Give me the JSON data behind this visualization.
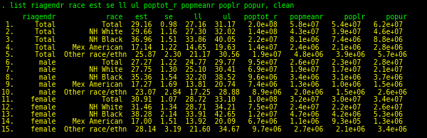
{
  "bg_color": "#000000",
  "header_color": "#00ff00",
  "text_color": "#ffff00",
  "command_color": "#00ff00",
  "command": ". list riagendr race est se ll ul poptot_r popmeanr poplr popur, clean",
  "header": "     riagendr            race   est    se     ll     ul   poptot_r   popmeanr     poplr     popur",
  "rows": [
    " 1.     Total           Total  29.16  0.98  27.16  31.17   2.0e+08   5.8e+07   5.4e+07   6.2e+07",
    " 2.     Total        NH White  29.66  1.16  27.30  32.02   1.4e+08   4.3e+07   3.9e+07   4.6e+07",
    " 3.     Total        NH Black  36.96  1.51  33.86  40.05   2.2e+07   8.1e+06   7.4e+06   8.8e+06",
    " 4.     Total    Mex American  17.14  1.22  14.65  19.63   1.4e+07   2.4e+06   2.1e+06   2.8e+06",
    " 5.     Total  Other race/ethn  25.87  2.30  21.17  30.56   1.9e+07   4.8e+06   3.9e+06   5.7e+06",
    " 6.      male           Total  27.27  1.22  24.77  29.77   9.5e+07   2.6e+07   2.3e+07   2.8e+07",
    " 7.      male        NH White  27.75  1.30  25.10  30.41   6.9e+07   1.9e+07   1.7e+07   2.1e+07",
    " 8.      male        NH Black  35.36  1.54  32.20  38.52   9.6e+06   3.4e+06   3.1e+06   3.7e+06",
    " 9.      male    Mex American  17.27  1.69  13.81  20.74   7.4e+06   1.3e+06   1.0e+06   1.5e+06",
    "10.      male  Other race/ethn  23.07  2.84  17.25  28.88   8.9e+06   2.0e+06   1.5e+06   2.6e+06",
    "11.    female           Total  30.91  1.07  28.72  33.10   1.0e+08   3.2e+07   3.0e+07   3.4e+07",
    "12.    female        NH White  31.46  1.34  28.71  34.21   7.5e+07   2.4e+07   2.2e+07   2.6e+07",
    "13.    female        NH Black  38.28  2.14  33.91  42.65   1.2e+07   4.7e+06   4.2e+06   5.3e+06",
    "14.    female    Mex American  17.00  1.51  13.92  20.09   6.7e+06   1.1e+06   9.3e+05   1.3e+06",
    "15.    female  Other race/ethn  28.14  3.19  21.60  34.67   9.7e+06   2.7e+06   2.1e+06   3.4e+06"
  ],
  "fontsize": 7.0,
  "cmd_fontsize": 7.0
}
